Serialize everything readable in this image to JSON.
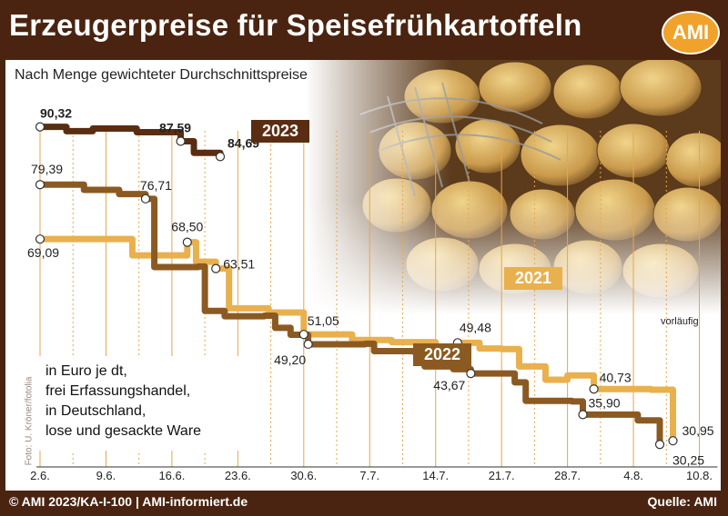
{
  "header": {
    "title": "Erzeugerpreise für Speisefrühkartoffeln",
    "logo": "AMI"
  },
  "subtitle": "Nach Menge gewichteter Durchschnittspreise",
  "unit_note": [
    "in Euro je dt,",
    "frei Erfassungshandel,",
    "in Deutschland,",
    "lose und gesackte Ware"
  ],
  "photo_credit": "Foto: U. Kröner/fotolia",
  "provisional_note": "vorläufig",
  "footer": {
    "left": "© AMI 2023/KA-I-100 | AMI-informiert.de",
    "right": "Quelle: AMI"
  },
  "colors": {
    "background": "#4a2410",
    "s2023": "#5a2d12",
    "s2022": "#8b5a22",
    "s2021": "#e9b04e",
    "grid": "#e8a64a"
  },
  "chart_data": {
    "type": "line",
    "title": "Erzeugerpreise für Speisefrühkartoffeln",
    "subtitle": "Nach Menge gewichteter Durchschnittspreise",
    "ylabel": "in Euro je dt",
    "categories": [
      "2.6.",
      "9.6.",
      "16.6.",
      "23.6.",
      "30.6.",
      "7.7.",
      "14.7.",
      "21.7.",
      "28.7.",
      "4.8.",
      "10.8."
    ],
    "ylim": [
      26,
      93
    ],
    "grid": true,
    "series": [
      {
        "name": "2023",
        "color": "#5a2d12",
        "points": [
          {
            "x": 0,
            "y": 90.32,
            "label": "90,32",
            "bold": true
          },
          {
            "x": 0.6,
            "y": 89.5
          },
          {
            "x": 1.2,
            "y": 90.0
          },
          {
            "x": 2.2,
            "y": 89.3
          },
          {
            "x": 3.2,
            "y": 87.59,
            "label": "87,59",
            "bold": true
          },
          {
            "x": 3.5,
            "y": 85.4
          },
          {
            "x": 4.1,
            "y": 84.69,
            "label": "84,69",
            "bold": true
          }
        ]
      },
      {
        "name": "2022",
        "color": "#8b5a22",
        "points": [
          {
            "x": 0,
            "y": 79.39,
            "label": "79,39"
          },
          {
            "x": 1.0,
            "y": 78.4
          },
          {
            "x": 1.8,
            "y": 77.6
          },
          {
            "x": 2.4,
            "y": 76.71,
            "label": "76,71"
          },
          {
            "x": 2.6,
            "y": 63.8
          },
          {
            "x": 3.6,
            "y": 63.9
          },
          {
            "x": 3.75,
            "y": 55.5
          },
          {
            "x": 4.2,
            "y": 54.5
          },
          {
            "x": 5.1,
            "y": 54.6
          },
          {
            "x": 5.35,
            "y": 52.3
          },
          {
            "x": 5.7,
            "y": 51.0
          },
          {
            "x": 6.1,
            "y": 49.2,
            "label": "49,20"
          },
          {
            "x": 7.4,
            "y": 49.3
          },
          {
            "x": 7.6,
            "y": 47.9
          },
          {
            "x": 8.5,
            "y": 47.8
          },
          {
            "x": 8.75,
            "y": 45.0
          },
          {
            "x": 9.4,
            "y": 44.5
          },
          {
            "x": 9.8,
            "y": 43.67,
            "label": "43,67"
          },
          {
            "x": 10.8,
            "y": 42.0
          },
          {
            "x": 11.05,
            "y": 38.5
          },
          {
            "x": 12.1,
            "y": 38.4
          },
          {
            "x": 12.35,
            "y": 35.9,
            "label": "35,90"
          },
          {
            "x": 13.6,
            "y": 34.8
          },
          {
            "x": 14.1,
            "y": 30.25,
            "label": "30,25"
          }
        ]
      },
      {
        "name": "2021",
        "color": "#e9b04e",
        "points": [
          {
            "x": 0,
            "y": 69.09,
            "label": "69,09"
          },
          {
            "x": 1.9,
            "y": 69.1
          },
          {
            "x": 2.1,
            "y": 66.0
          },
          {
            "x": 3.2,
            "y": 66.0
          },
          {
            "x": 3.35,
            "y": 68.5,
            "label": "68,50"
          },
          {
            "x": 3.55,
            "y": 64.8
          },
          {
            "x": 4.0,
            "y": 63.51,
            "label": "63,51"
          },
          {
            "x": 4.3,
            "y": 56.0
          },
          {
            "x": 5.2,
            "y": 55.2
          },
          {
            "x": 6.0,
            "y": 51.05,
            "label": "51,05"
          },
          {
            "x": 7.1,
            "y": 50.0
          },
          {
            "x": 8.0,
            "y": 49.6
          },
          {
            "x": 9.0,
            "y": 48.0
          },
          {
            "x": 9.5,
            "y": 49.48,
            "label": "49,48"
          },
          {
            "x": 10.0,
            "y": 48.4
          },
          {
            "x": 10.5,
            "y": 48.3
          },
          {
            "x": 10.9,
            "y": 45.0
          },
          {
            "x": 11.5,
            "y": 42.5
          },
          {
            "x": 12.0,
            "y": 43.3
          },
          {
            "x": 12.6,
            "y": 40.73,
            "label": "40,73"
          },
          {
            "x": 13.9,
            "y": 40.6
          },
          {
            "x": 14.4,
            "y": 30.95,
            "label": "30,95"
          }
        ]
      }
    ]
  }
}
